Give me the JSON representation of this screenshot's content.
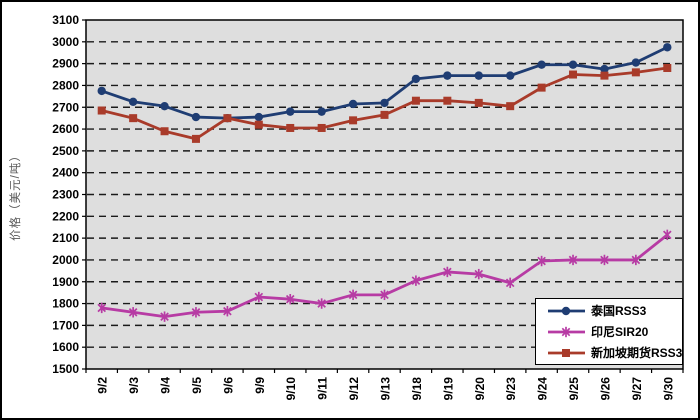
{
  "chart_data": {
    "type": "line",
    "title": "",
    "xlabel": "",
    "ylabel": "价格（美元/吨）",
    "ylim": [
      1500,
      3100
    ],
    "ytick_step": 100,
    "grid": "horizontal-dashed",
    "plot_bg_color": "#DEDEDE",
    "gridline_color": "#1a1a1a",
    "legend_position": "inside-bottom-right",
    "categories": [
      "9/2",
      "9/3",
      "9/4",
      "9/5",
      "9/6",
      "9/9",
      "9/10",
      "9/11",
      "9/12",
      "9/13",
      "9/18",
      "9/19",
      "9/20",
      "9/23",
      "9/24",
      "9/25",
      "9/26",
      "9/27",
      "9/30"
    ],
    "series": [
      {
        "name": "泰国RSS3",
        "color": "#1F3D73",
        "marker": "circle",
        "values": [
          2775,
          2725,
          2705,
          2655,
          2650,
          2655,
          2680,
          2680,
          2715,
          2720,
          2830,
          2845,
          2845,
          2845,
          2895,
          2895,
          2875,
          2905,
          2975
        ]
      },
      {
        "name": "印尼SIR20",
        "color": "#B73BA4",
        "marker": "asterisk",
        "values": [
          1780,
          1760,
          1740,
          1760,
          1765,
          1830,
          1820,
          1800,
          1840,
          1840,
          1905,
          1945,
          1935,
          1895,
          1995,
          2000,
          2000,
          2000,
          2115
        ]
      },
      {
        "name": "新加坡期货RSS3",
        "color": "#A93B2A",
        "marker": "square",
        "values": [
          2685,
          2650,
          2590,
          2555,
          2650,
          2620,
          2605,
          2605,
          2640,
          2665,
          2730,
          2730,
          2720,
          2705,
          2790,
          2850,
          2845,
          2860,
          2880
        ]
      }
    ]
  }
}
